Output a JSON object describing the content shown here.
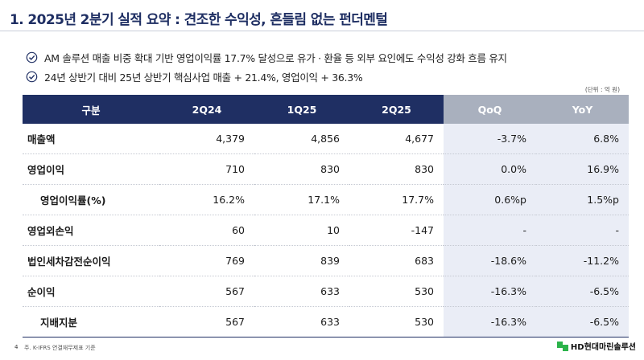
{
  "header": {
    "title": "1. 2025년 2분기 실적 요약 : 견조한 수익성, 흔들림 없는 펀더멘털"
  },
  "bullets": [
    "AM 솔루션 매출 비중 확대 기반 영업이익률 17.7% 달성으로 유가 · 환율 등 외부 요인에도 수익성 강화 흐름 유지",
    "24년 상반기 대비 25년 상반기 핵심사업 매출 + 21.4%, 영업이익 + 36.3%"
  ],
  "unit_note": "(단위 : 억 원)",
  "table": {
    "headers": [
      "구분",
      "2Q24",
      "1Q25",
      "2Q25",
      "QoQ",
      "YoY"
    ],
    "rows": [
      {
        "label": "매출액",
        "values": [
          "4,379",
          "4,856",
          "4,677",
          "-3.7%",
          "6.8%"
        ]
      },
      {
        "label": "영업이익",
        "values": [
          "710",
          "830",
          "830",
          "0.0%",
          "16.9%"
        ]
      },
      {
        "label": "영업이익률(%)",
        "values": [
          "16.2%",
          "17.1%",
          "17.7%",
          "0.6%p",
          "1.5%p"
        ]
      },
      {
        "label": "영업외손익",
        "values": [
          "60",
          "10",
          "-147",
          "-",
          "-"
        ]
      },
      {
        "label": "법인세차감전순이익",
        "values": [
          "769",
          "839",
          "683",
          "-18.6%",
          "-11.2%"
        ]
      },
      {
        "label": "순이익",
        "values": [
          "567",
          "633",
          "530",
          "-16.3%",
          "-6.5%"
        ]
      },
      {
        "label": "지배지분",
        "values": [
          "567",
          "633",
          "530",
          "-16.3%",
          "-6.5%"
        ]
      }
    ]
  },
  "footer": {
    "page_number": "4",
    "note": "주. K-IFRS 연결재무제표 기준",
    "logo_text": "HD현대마린솔루션"
  }
}
